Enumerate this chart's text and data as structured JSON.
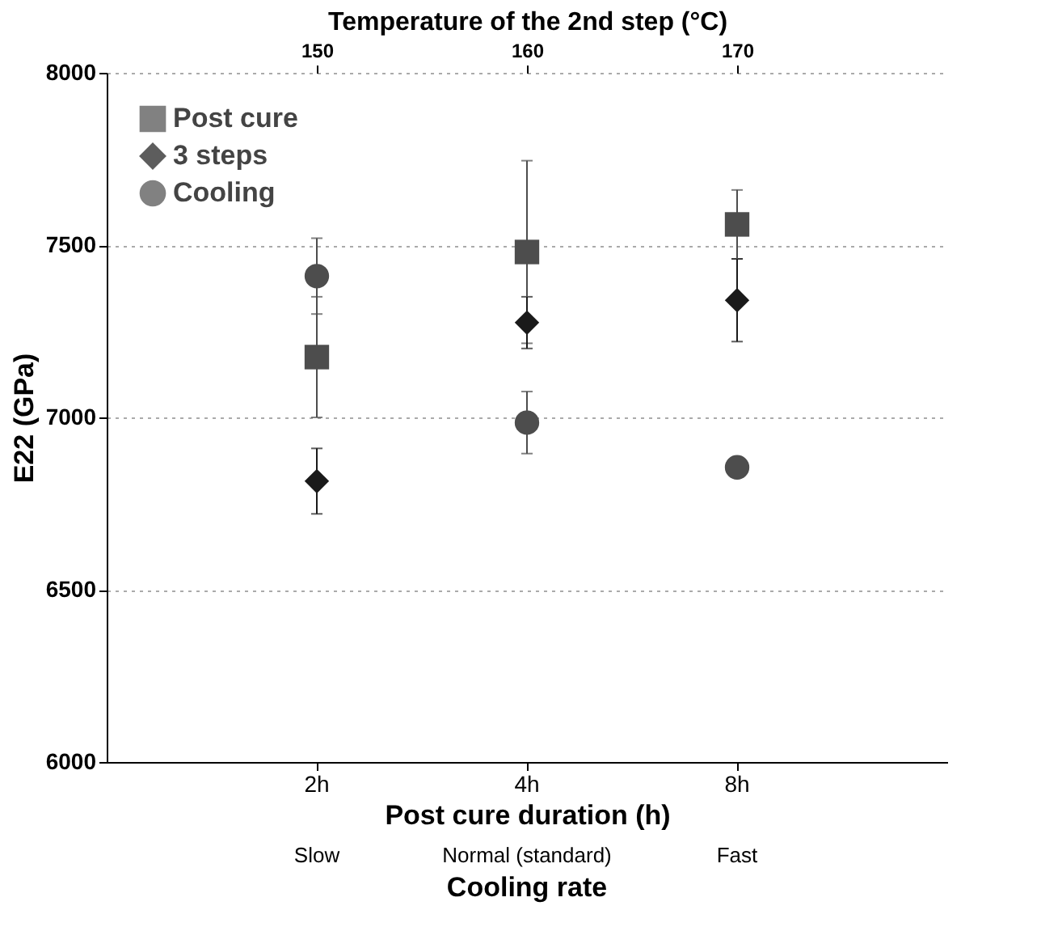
{
  "chart_data": {
    "type": "scatter",
    "categories": [
      "2h",
      "4h",
      "8h"
    ],
    "xlabel": "Post cure duration (h)",
    "ylabel": "E22 (GPa)",
    "x2label": "Temperature of the 2nd step (°C)",
    "x2lim": [
      140,
      180
    ],
    "x2ticks": [
      150,
      160,
      170
    ],
    "ylim": [
      6000,
      8000
    ],
    "yticks": [
      6000,
      6500,
      7000,
      7500,
      8000
    ],
    "grid": "y",
    "legend": "top left",
    "series": [
      {
        "name": "Post cure",
        "color": "#4d4d4d",
        "marker": "square",
        "values": [
          7175,
          7480,
          7560
        ],
        "errors": [
          175,
          265,
          100
        ]
      },
      {
        "name": "3 steps",
        "color": "#1a1a1a",
        "marker": "diamond",
        "values": [
          6815,
          7275,
          7340
        ],
        "errors": [
          95,
          75,
          120
        ]
      },
      {
        "name": "Cooling",
        "color": "#4d4d4d",
        "marker": "circle",
        "values": [
          7410,
          6985,
          6855
        ],
        "errors": [
          110,
          90,
          25
        ]
      }
    ],
    "annotations": [
      "Slow",
      "Normal (standard)",
      "Fast",
      "Cooling rate"
    ]
  }
}
